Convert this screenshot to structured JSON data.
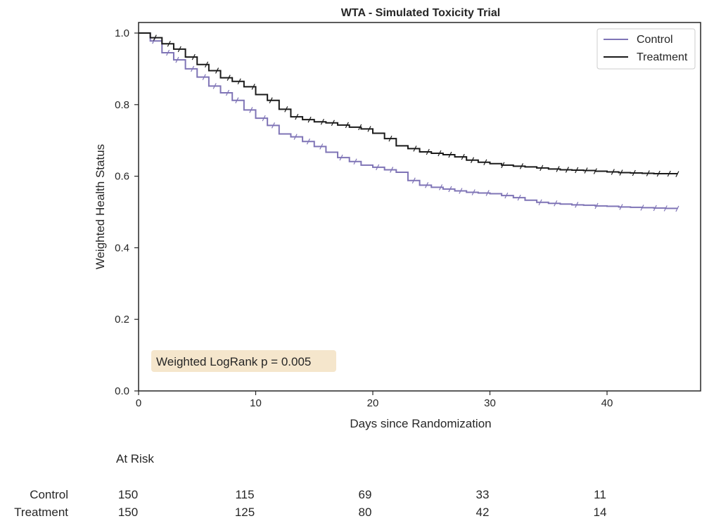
{
  "chart_data": {
    "type": "line",
    "title": "WTA - Simulated Toxicity Trial",
    "xlabel": "Days since Randomization",
    "ylabel": "Weighted Health Status",
    "xlim": [
      0,
      47
    ],
    "ylim": [
      0,
      1.02
    ],
    "xticks": [
      0,
      10,
      20,
      30,
      40
    ],
    "yticks": [
      0.0,
      0.2,
      0.4,
      0.6,
      0.8,
      1.0
    ],
    "grid": false,
    "legend_position": "top-right",
    "annotation": "Weighted LogRank p = 0.005",
    "colors": {
      "Control": "#7f74b6",
      "Treatment": "#1a1a1a",
      "annotation_box": "#f5e6cc"
    },
    "series": [
      {
        "name": "Control",
        "x": [
          0,
          1,
          2,
          3,
          4,
          5,
          6,
          7,
          8,
          9,
          10,
          11,
          12,
          13,
          14,
          15,
          16,
          17,
          18,
          19,
          20,
          21,
          22,
          23,
          24,
          25,
          26,
          27,
          28,
          29,
          30,
          31,
          32,
          33,
          34,
          35,
          36,
          37,
          38,
          39,
          40,
          41,
          42,
          43,
          44,
          45,
          46
        ],
        "y": [
          1.0,
          0.978,
          0.945,
          0.925,
          0.9,
          0.877,
          0.852,
          0.833,
          0.812,
          0.785,
          0.762,
          0.742,
          0.718,
          0.71,
          0.697,
          0.683,
          0.667,
          0.652,
          0.641,
          0.631,
          0.625,
          0.618,
          0.611,
          0.588,
          0.575,
          0.569,
          0.564,
          0.559,
          0.555,
          0.553,
          0.551,
          0.546,
          0.54,
          0.533,
          0.527,
          0.524,
          0.522,
          0.52,
          0.519,
          0.517,
          0.516,
          0.514,
          0.513,
          0.512,
          0.511,
          0.51,
          0.509
        ],
        "censor_x": [
          1.3,
          2.5,
          3.3,
          4.6,
          5.6,
          6.5,
          7.6,
          8.4,
          9.6,
          10.7,
          11.5,
          13.4,
          14.5,
          15.6,
          17.3,
          18.5,
          20.4,
          21.6,
          23.5,
          24.6,
          25.8,
          26.6,
          27.5,
          28.6,
          29.8,
          31.4,
          32.5,
          34.3,
          35.6,
          37.4,
          39.1,
          41.2,
          43.0,
          44.1,
          45.0,
          46.0
        ]
      },
      {
        "name": "Treatment",
        "x": [
          0,
          1,
          2,
          3,
          4,
          5,
          6,
          7,
          8,
          9,
          10,
          11,
          12,
          13,
          14,
          15,
          16,
          17,
          18,
          19,
          20,
          21,
          22,
          23,
          24,
          25,
          26,
          27,
          28,
          29,
          30,
          31,
          32,
          33,
          34,
          35,
          36,
          37,
          38,
          39,
          40,
          41,
          42,
          43,
          44,
          45,
          46
        ],
        "y": [
          1.0,
          0.987,
          0.97,
          0.955,
          0.933,
          0.912,
          0.895,
          0.875,
          0.865,
          0.85,
          0.828,
          0.812,
          0.787,
          0.766,
          0.758,
          0.752,
          0.749,
          0.743,
          0.737,
          0.732,
          0.72,
          0.705,
          0.685,
          0.677,
          0.668,
          0.664,
          0.66,
          0.654,
          0.645,
          0.639,
          0.635,
          0.631,
          0.628,
          0.626,
          0.623,
          0.62,
          0.618,
          0.617,
          0.616,
          0.614,
          0.612,
          0.61,
          0.609,
          0.608,
          0.607,
          0.607,
          0.606
        ],
        "censor_x": [
          1.4,
          2.6,
          3.5,
          4.7,
          5.8,
          6.7,
          7.7,
          8.6,
          9.8,
          11.3,
          12.6,
          13.5,
          14.6,
          15.7,
          16.6,
          17.8,
          18.9,
          19.7,
          21.5,
          23.6,
          24.7,
          25.7,
          26.6,
          27.7,
          28.5,
          29.6,
          31.1,
          32.7,
          34.4,
          35.8,
          36.6,
          37.4,
          38.2,
          39.0,
          40.5,
          41.2,
          42.3,
          43.5,
          44.4,
          45.3,
          46.0
        ]
      }
    ],
    "at_risk": {
      "title": "At Risk",
      "x": [
        0,
        10,
        20,
        30,
        40
      ],
      "rows": [
        {
          "name": "Control",
          "counts": [
            "150",
            "115",
            "69",
            "33",
            "11"
          ]
        },
        {
          "name": "Treatment",
          "counts": [
            "150",
            "125",
            "80",
            "42",
            "14"
          ]
        }
      ]
    }
  }
}
